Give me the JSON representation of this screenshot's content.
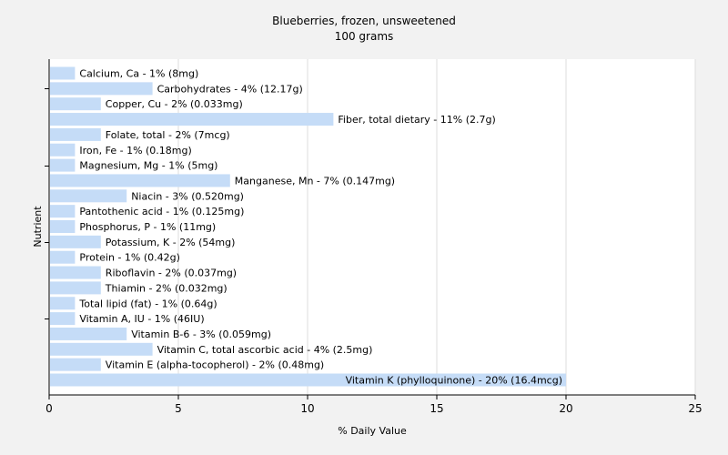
{
  "chart_data": {
    "type": "bar",
    "orientation": "horizontal",
    "title": "Blueberries, frozen, unsweetened",
    "subtitle": "100 grams",
    "xlabel": "% Daily Value",
    "ylabel": "Nutrient",
    "xlim": [
      0,
      25
    ],
    "xticks": [
      0,
      5,
      10,
      15,
      20,
      25
    ],
    "grid": "vertical",
    "colors": {
      "bar": "#c5dcf7",
      "background": "#f2f2f2",
      "plot_background": "#ffffff",
      "grid": "#dddddd",
      "axis": "#000000"
    },
    "categories": [
      "Calcium, Ca",
      "Carbohydrates",
      "Copper, Cu",
      "Fiber, total dietary",
      "Folate, total",
      "Iron, Fe",
      "Magnesium, Mg",
      "Manganese, Mn",
      "Niacin",
      "Pantothenic acid",
      "Phosphorus, P",
      "Potassium, K",
      "Protein",
      "Riboflavin",
      "Thiamin",
      "Total lipid (fat)",
      "Vitamin A, IU",
      "Vitamin B-6",
      "Vitamin C, total ascorbic acid",
      "Vitamin E (alpha-tocopherol)",
      "Vitamin K (phylloquinone)"
    ],
    "values": [
      1,
      4,
      2,
      11,
      2,
      1,
      1,
      7,
      3,
      1,
      1,
      2,
      1,
      2,
      2,
      1,
      1,
      3,
      4,
      2,
      20
    ],
    "labels": [
      "Calcium, Ca - 1% (8mg)",
      "Carbohydrates - 4% (12.17g)",
      "Copper, Cu - 2% (0.033mg)",
      "Fiber, total dietary - 11% (2.7g)",
      "Folate, total - 2% (7mcg)",
      "Iron, Fe - 1% (0.18mg)",
      "Magnesium, Mg - 1% (5mg)",
      "Manganese, Mn - 7% (0.147mg)",
      "Niacin - 3% (0.520mg)",
      "Pantothenic acid - 1% (0.125mg)",
      "Phosphorus, P - 1% (11mg)",
      "Potassium, K - 2% (54mg)",
      "Protein - 1% (0.42g)",
      "Riboflavin - 2% (0.037mg)",
      "Thiamin - 2% (0.032mg)",
      "Total lipid (fat) - 1% (0.64g)",
      "Vitamin A, IU - 1% (46IU)",
      "Vitamin B-6 - 3% (0.059mg)",
      "Vitamin C, total ascorbic acid - 4% (2.5mg)",
      "Vitamin E (alpha-tocopherol) - 2% (0.48mg)",
      "Vitamin K (phylloquinone) - 20% (16.4mcg)"
    ]
  }
}
